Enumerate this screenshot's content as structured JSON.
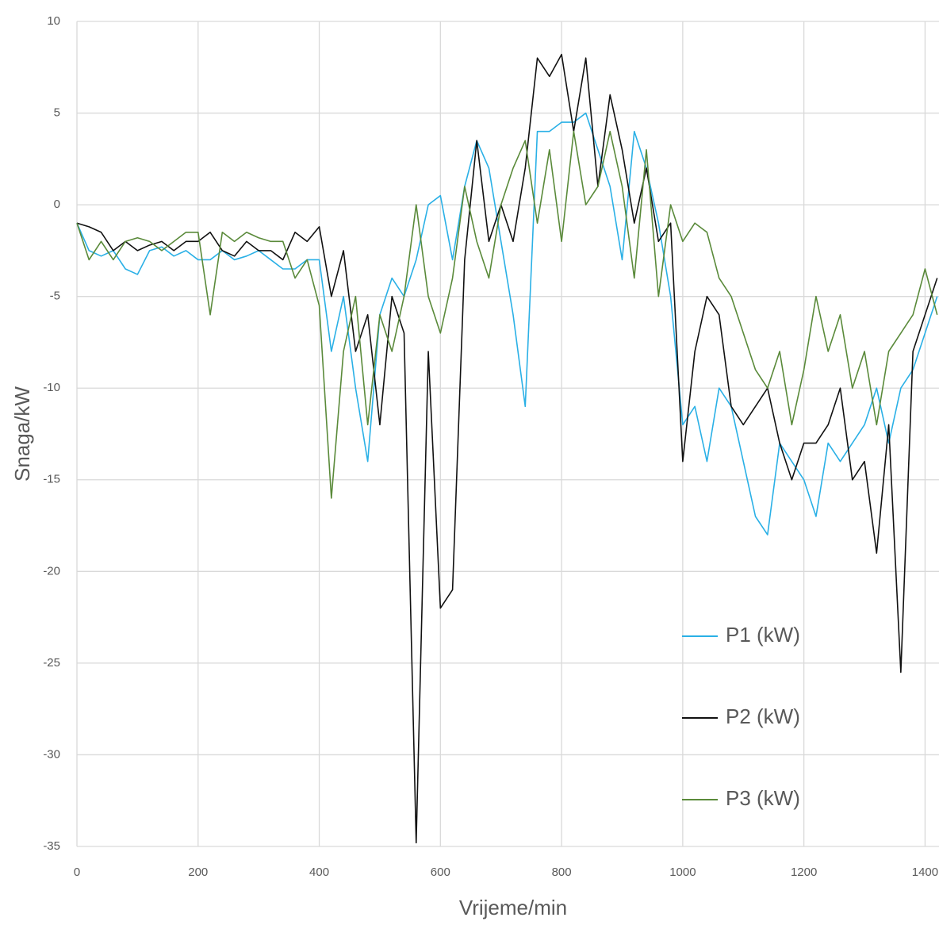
{
  "chart_data": {
    "type": "line",
    "xlabel": "Vrijeme/min",
    "ylabel": "Snaga/kW",
    "x": [
      0,
      20,
      40,
      60,
      80,
      100,
      120,
      140,
      160,
      180,
      200,
      220,
      240,
      260,
      280,
      300,
      320,
      340,
      360,
      380,
      400,
      420,
      440,
      460,
      480,
      500,
      520,
      540,
      560,
      580,
      600,
      620,
      640,
      660,
      680,
      700,
      720,
      740,
      760,
      780,
      800,
      820,
      840,
      860,
      880,
      900,
      920,
      940,
      960,
      980,
      1000,
      1020,
      1040,
      1060,
      1080,
      1100,
      1120,
      1140,
      1160,
      1180,
      1200,
      1220,
      1240,
      1260,
      1280,
      1300,
      1320,
      1340,
      1360,
      1380,
      1400,
      1420
    ],
    "series": [
      {
        "name": "P1 (kW)",
        "color": "#2ab0e6",
        "values": [
          -1,
          -2.5,
          -2.8,
          -2.5,
          -3.5,
          -3.8,
          -2.5,
          -2.3,
          -2.8,
          -2.5,
          -3,
          -3,
          -2.5,
          -3,
          -2.8,
          -2.5,
          -3,
          -3.5,
          -3.5,
          -3,
          -3,
          -8,
          -5,
          -10,
          -14,
          -6,
          -4,
          -5,
          -3,
          0,
          0.5,
          -3,
          1,
          3.5,
          2,
          -2,
          -6,
          -11,
          4,
          4,
          4.5,
          4.5,
          5,
          3,
          1,
          -3,
          4,
          2,
          -1,
          -5,
          -12,
          -11,
          -14,
          -10,
          -11,
          -14,
          -17,
          -18,
          -13,
          -14,
          -15,
          -17,
          -13,
          -14,
          -13,
          -12,
          -10,
          -13,
          -10,
          -9,
          -7,
          -5
        ]
      },
      {
        "name": "P2 (kW)",
        "color": "#111111",
        "values": [
          -1,
          -1.2,
          -1.5,
          -2.5,
          -2,
          -2.5,
          -2.2,
          -2,
          -2.5,
          -2,
          -2,
          -1.5,
          -2.5,
          -2.8,
          -2,
          -2.5,
          -2.5,
          -3,
          -1.5,
          -2,
          -1.2,
          -5,
          -2.5,
          -8,
          -6,
          -12,
          -5,
          -7,
          -34.8,
          -8,
          -22,
          -21,
          -3,
          3.5,
          -2,
          0,
          -2,
          2,
          8,
          7,
          8.2,
          4,
          8,
          1,
          6,
          3,
          -1,
          2,
          -2,
          -1,
          -14,
          -8,
          -5,
          -6,
          -11,
          -12,
          -11,
          -10,
          -13,
          -15,
          -13,
          -13,
          -12,
          -10,
          -15,
          -14,
          -19,
          -12,
          -25.5,
          -8,
          -6,
          -4
        ]
      },
      {
        "name": "P3 (kW)",
        "color": "#5a8a3a",
        "values": [
          -1,
          -3,
          -2,
          -3,
          -2,
          -1.8,
          -2,
          -2.5,
          -2,
          -1.5,
          -1.5,
          -6,
          -1.5,
          -2,
          -1.5,
          -1.8,
          -2,
          -2,
          -4,
          -3,
          -5.5,
          -16,
          -8,
          -5,
          -12,
          -6,
          -8,
          -5,
          0,
          -5,
          -7,
          -4,
          1,
          -2,
          -4,
          0,
          2,
          3.5,
          -1,
          3,
          -2,
          4,
          0,
          1,
          4,
          1,
          -4,
          3,
          -5,
          0,
          -2,
          -1,
          -1.5,
          -4,
          -5,
          -7,
          -9,
          -10,
          -8,
          -12,
          -9,
          -5,
          -8,
          -6,
          -10,
          -8,
          -12,
          -8,
          -7,
          -6,
          -3.5,
          -6
        ]
      }
    ],
    "xlim": [
      0,
      1423
    ],
    "xticks": [
      0,
      200,
      400,
      600,
      800,
      1000,
      1200,
      1400
    ],
    "ylim": [
      -35,
      10
    ],
    "yticks": [
      -35,
      -30,
      -25,
      -20,
      -15,
      -10,
      -5,
      0,
      5,
      10
    ],
    "grid": true,
    "legend": "lower right"
  }
}
